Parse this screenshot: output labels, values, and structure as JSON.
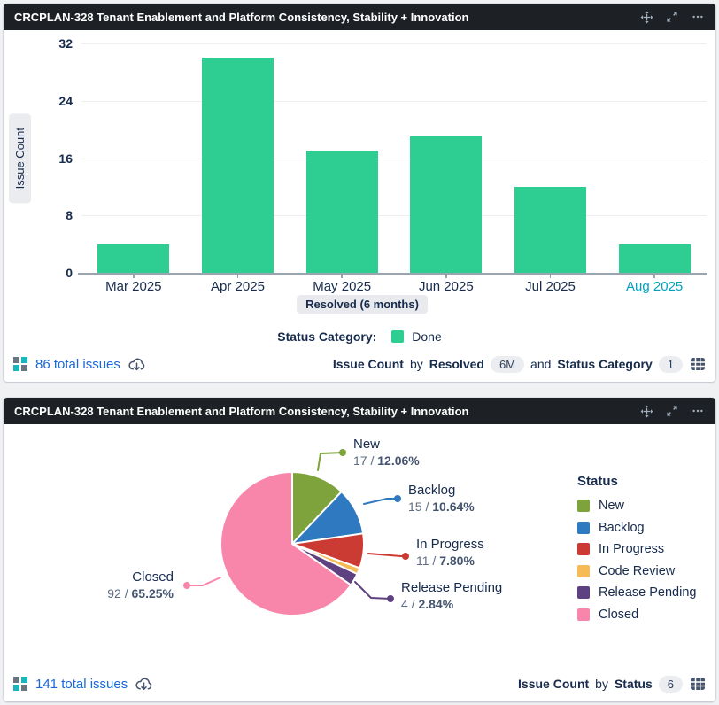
{
  "theme": {
    "page_bg": "#F0F1F3",
    "card_bg": "#FFFFFF",
    "header_bg": "#1D2125",
    "header_text": "#FFFFFF",
    "header_icon_color": "#9FADBC",
    "link_color": "#1868DB",
    "text_navy": "#172B4D",
    "text_gray": "#5E6C84",
    "highlight_month_color": "#00A3BF",
    "footer_icon_color": "#44546F",
    "grid_icon_teal": "#1CB5BE",
    "grid_icon_gray": "#6B7582"
  },
  "icons": [
    "move-icon",
    "maximize-icon",
    "more-icon",
    "issues-grid-icon",
    "cloud-download-icon",
    "table-view-icon"
  ],
  "bar_gadget": {
    "title": "CRCPLAN-328 Tenant Enablement and Platform Consistency, Stability + Innovation",
    "footer": {
      "total_link": "86 total issues",
      "metric": "Issue Count",
      "by_word": "by",
      "dim1": "Resolved",
      "dim1_pill": "6M",
      "and_word": "and",
      "dim2": "Status Category",
      "dim2_pill": "1"
    },
    "chart_data": {
      "type": "bar",
      "ylabel": "Issue Count",
      "x_axis_pill": "Resolved (6 months)",
      "categories": [
        "Mar 2025",
        "Apr 2025",
        "May 2025",
        "Jun 2025",
        "Jul 2025",
        "Aug 2025"
      ],
      "values": [
        4,
        30,
        17,
        19,
        12,
        4
      ],
      "ylim": [
        0,
        32
      ],
      "yticks": [
        0,
        8,
        16,
        24,
        32
      ],
      "bar_color": "#2ECD92",
      "grid": true,
      "category_colors": {
        "default": "#172B4D",
        "Aug 2025": "#00A3BF"
      },
      "legend": {
        "label": "Status Category:",
        "position": "bottom",
        "items": [
          {
            "name": "Done",
            "color": "#2ECD92"
          }
        ]
      }
    }
  },
  "pie_gadget": {
    "title": "CRCPLAN-328 Tenant Enablement and Platform Consistency, Stability + Innovation",
    "footer": {
      "total_link": "141 total issues",
      "metric": "Issue Count",
      "by_word": "by",
      "dim": "Status",
      "dim_pill": "6"
    },
    "chart_data": {
      "type": "pie",
      "total": 141,
      "legend_title": "Status",
      "legend_position": "right",
      "value_pct_separator": " / ",
      "slices": [
        {
          "name": "New",
          "value": 17,
          "pct_label": "12.06%",
          "color": "#7FA33C",
          "callout": true
        },
        {
          "name": "Backlog",
          "value": 15,
          "pct_label": "10.64%",
          "color": "#2E79BF",
          "callout": true
        },
        {
          "name": "In Progress",
          "value": 11,
          "pct_label": "7.80%",
          "color": "#CC3B33",
          "callout": true
        },
        {
          "name": "Code Review",
          "value": 2,
          "pct_label": "1.42%",
          "color": "#F5BB56",
          "callout": false
        },
        {
          "name": "Release Pending",
          "value": 4,
          "pct_label": "2.84%",
          "color": "#5E4180",
          "callout": true
        },
        {
          "name": "Closed",
          "value": 92,
          "pct_label": "65.25%",
          "color": "#F886AB",
          "callout": true
        }
      ]
    }
  }
}
